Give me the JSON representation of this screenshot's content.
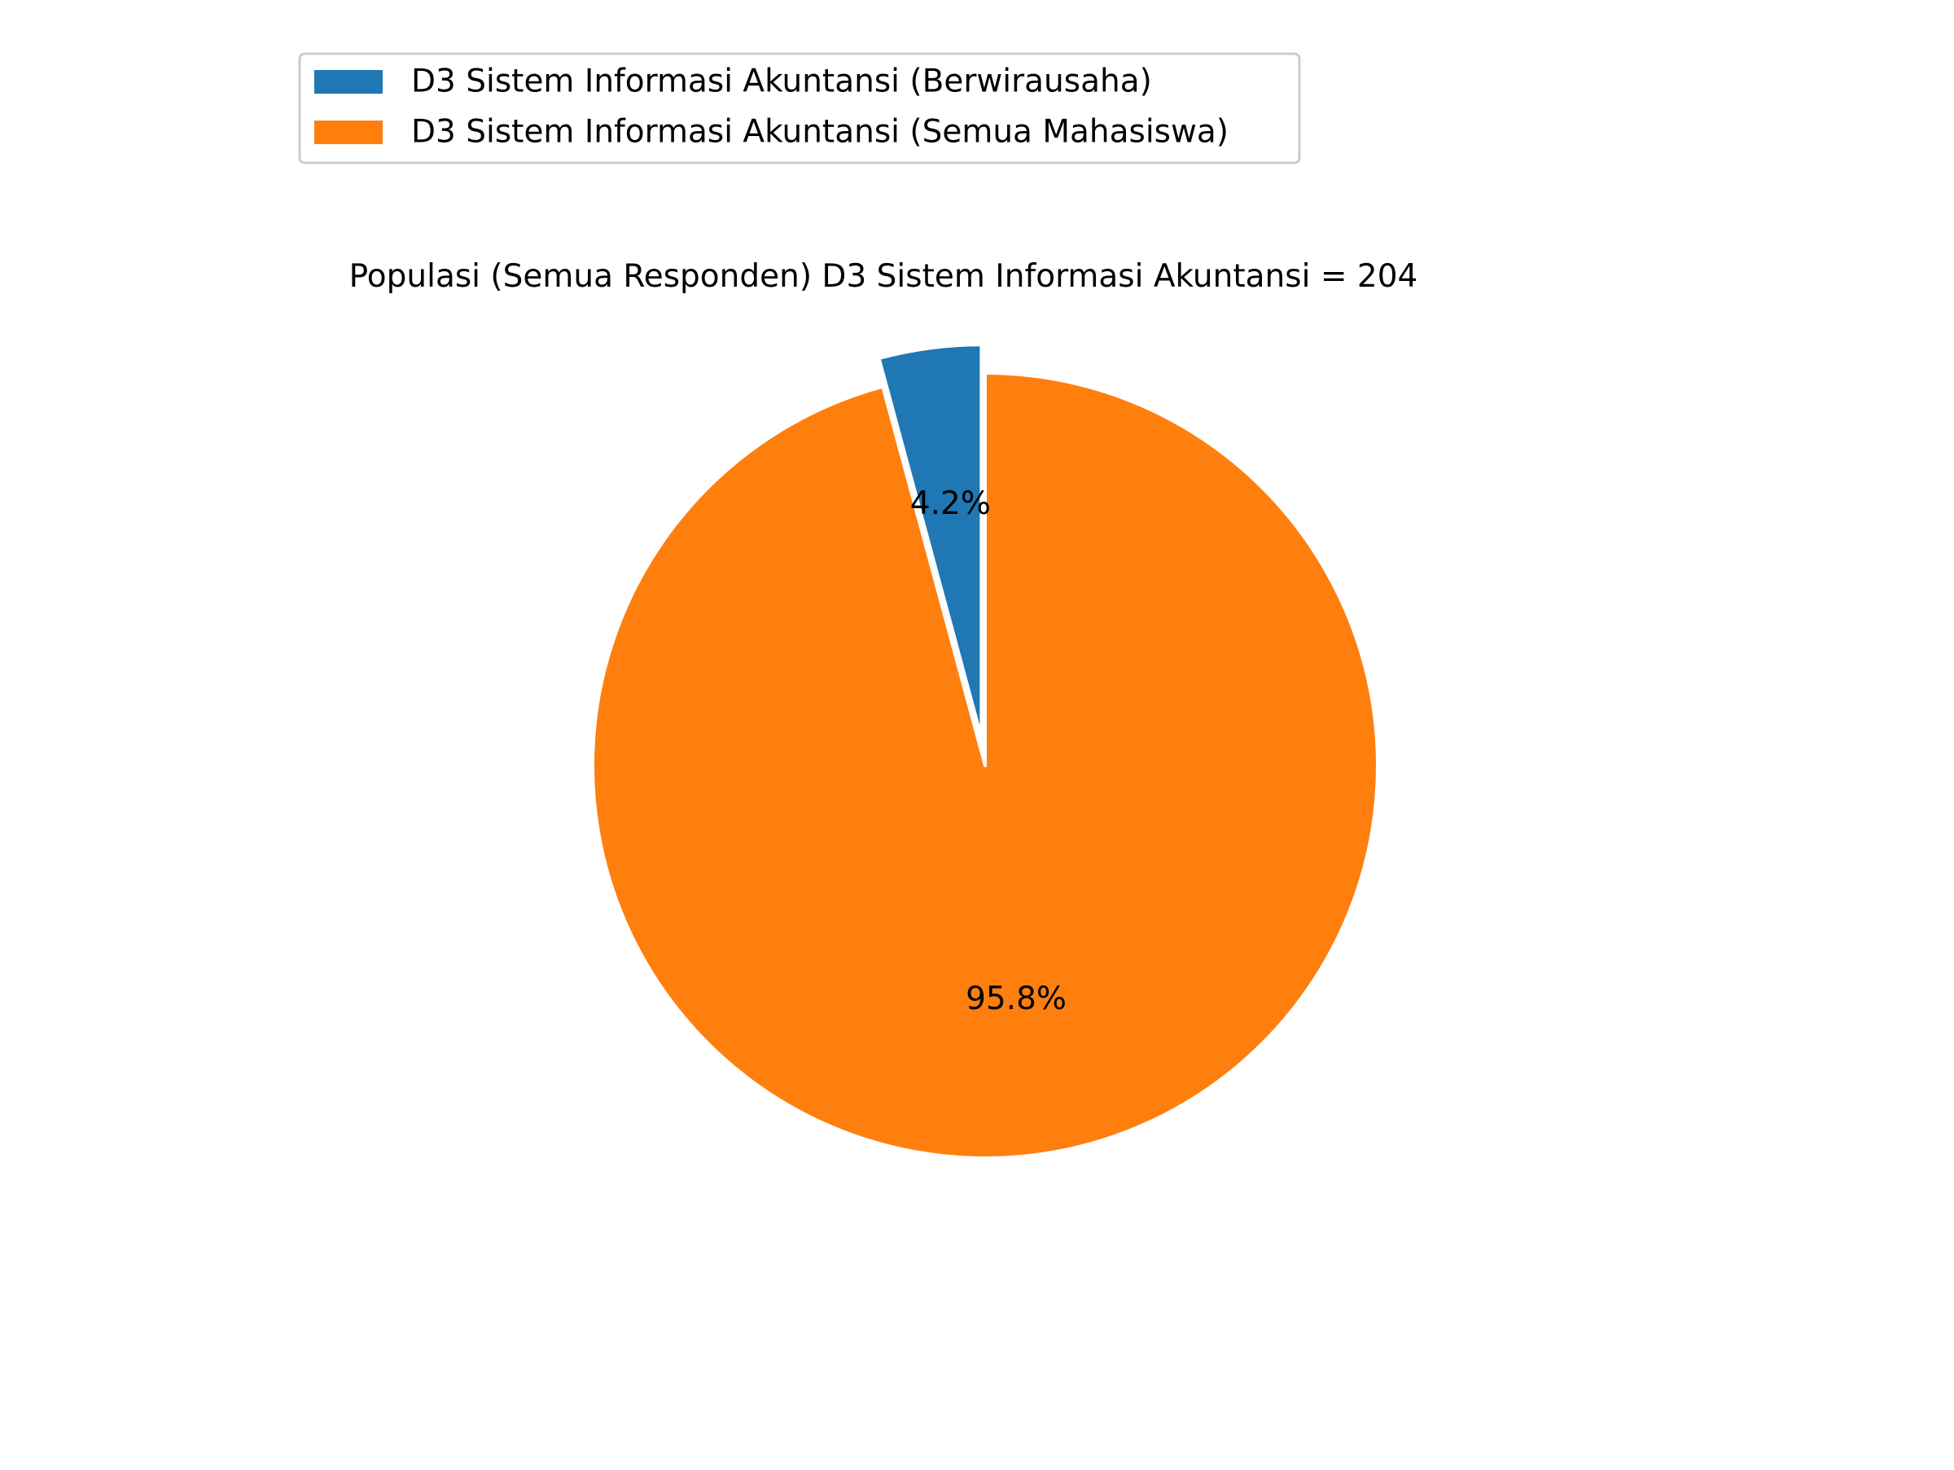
{
  "chart_data": {
    "type": "pie",
    "title": "Populasi (Semua Responden) D3 Sistem Informasi Akuntansi = 204",
    "slices": [
      {
        "label": "D3 Sistem Informasi Akuntansi (Berwirausaha)",
        "value": 4.2,
        "percent_label": "4.2%",
        "color": "#1f77b4",
        "exploded": true
      },
      {
        "label": "D3 Sistem Informasi Akuntansi (Semua Mahasiswa)",
        "value": 95.8,
        "percent_label": "95.8%",
        "color": "#ff7f0e",
        "exploded": false
      }
    ],
    "legend_placement": "top-left"
  }
}
